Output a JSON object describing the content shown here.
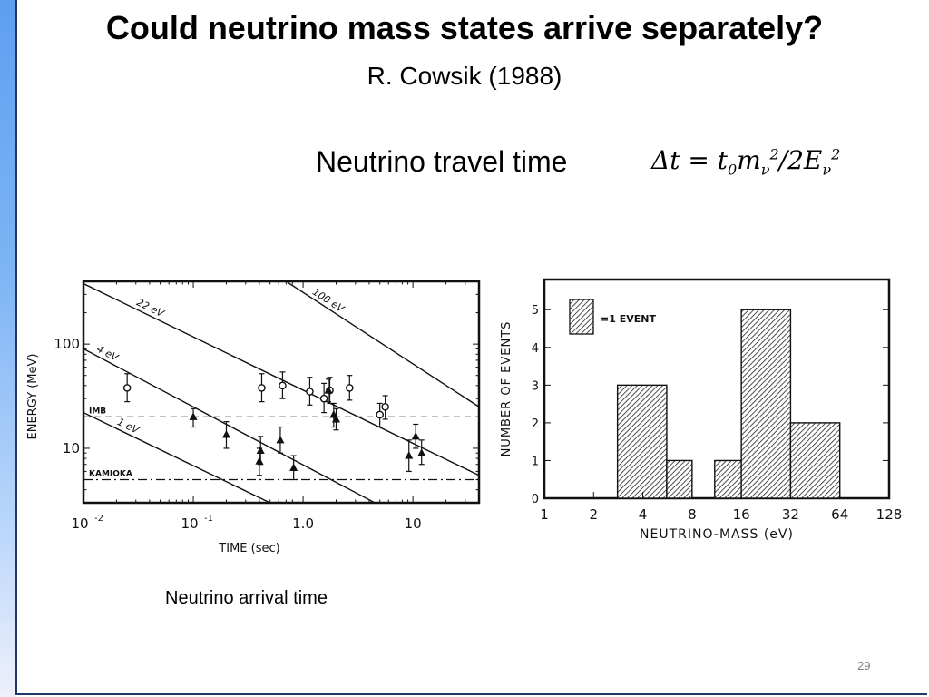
{
  "slide": {
    "title": "Could neutrino mass states arrive separately?",
    "subtitle": "R. Cowsik (1988)",
    "travel_label": "Neutrino travel time",
    "formula": {
      "lhs": "Δt = t",
      "t_sub": "0",
      "m": "m",
      "m_sub": "ν",
      "m_sup": "2",
      "div": "/2E",
      "e_sub": "ν",
      "e_sup": "2"
    },
    "caption": "Neutrino arrival time",
    "page_number": "29"
  },
  "chart_data": [
    {
      "type": "scatter",
      "xlabel": "TIME (sec)",
      "ylabel": "ENERGY (MeV)",
      "xscale": "log",
      "yscale": "log",
      "xlim": [
        0.01,
        40
      ],
      "ylim": [
        3,
        400
      ],
      "x_tick_labels": [
        {
          "value": 0.01,
          "base": "10",
          "exp": "-2"
        },
        {
          "value": 0.1,
          "base": "10",
          "exp": "-1"
        },
        {
          "value": 1,
          "base": "1.0",
          "exp": ""
        },
        {
          "value": 10,
          "base": "10",
          "exp": ""
        }
      ],
      "y_tick_labels": [
        {
          "value": 10,
          "label": "10"
        },
        {
          "value": 100,
          "label": "100"
        }
      ],
      "mass_lines": [
        {
          "label": "100 eV",
          "pts": [
            [
              0.7,
              400
            ],
            [
              40,
              25
            ]
          ]
        },
        {
          "label": "22 eV",
          "pts": [
            [
              0.01,
              380
            ],
            [
              40,
              5.5
            ]
          ]
        },
        {
          "label": "4 eV",
          "pts": [
            [
              0.01,
              90
            ],
            [
              4.5,
              3
            ]
          ]
        },
        {
          "label": "1 eV",
          "pts": [
            [
              0.01,
              22
            ],
            [
              0.5,
              3
            ]
          ]
        }
      ],
      "thresholds": [
        {
          "label": "IMB",
          "energy": 20,
          "style": "dashed"
        },
        {
          "label": "KAMIOKA",
          "energy": 5,
          "style": "dashdot"
        }
      ],
      "series": [
        {
          "name": "IMB",
          "marker": "open-circle",
          "points": [
            {
              "x": 0.025,
              "y": 38,
              "ylo": 28,
              "yhi": 52
            },
            {
              "x": 0.42,
              "y": 38,
              "ylo": 28,
              "yhi": 52
            },
            {
              "x": 0.65,
              "y": 40,
              "ylo": 30,
              "yhi": 54
            },
            {
              "x": 1.15,
              "y": 35,
              "ylo": 26,
              "yhi": 48
            },
            {
              "x": 1.55,
              "y": 30,
              "ylo": 22,
              "yhi": 42
            },
            {
              "x": 1.75,
              "y": 36,
              "ylo": 27,
              "yhi": 48
            },
            {
              "x": 2.65,
              "y": 38,
              "ylo": 29,
              "yhi": 50
            },
            {
              "x": 5.0,
              "y": 21,
              "ylo": 16,
              "yhi": 27
            },
            {
              "x": 5.6,
              "y": 25,
              "ylo": 19,
              "yhi": 32
            }
          ]
        },
        {
          "name": "KAMIOKA",
          "marker": "filled-triangle",
          "points": [
            {
              "x": 0.1,
              "y": 20,
              "ylo": 16,
              "yhi": 24
            },
            {
              "x": 0.2,
              "y": 13.5,
              "ylo": 10,
              "yhi": 18
            },
            {
              "x": 0.4,
              "y": 7.5,
              "ylo": 5.5,
              "yhi": 10
            },
            {
              "x": 0.41,
              "y": 9.5,
              "ylo": 7,
              "yhi": 13
            },
            {
              "x": 0.62,
              "y": 12,
              "ylo": 9,
              "yhi": 16
            },
            {
              "x": 0.82,
              "y": 6.5,
              "ylo": 5,
              "yhi": 8.5
            },
            {
              "x": 1.7,
              "y": 36,
              "ylo": 28,
              "yhi": 46
            },
            {
              "x": 1.9,
              "y": 21,
              "ylo": 16,
              "yhi": 27
            },
            {
              "x": 2.0,
              "y": 19,
              "ylo": 15,
              "yhi": 24
            },
            {
              "x": 9.2,
              "y": 8.5,
              "ylo": 6,
              "yhi": 12
            },
            {
              "x": 10.6,
              "y": 13,
              "ylo": 10,
              "yhi": 17
            },
            {
              "x": 12.0,
              "y": 9,
              "ylo": 7,
              "yhi": 12
            }
          ]
        }
      ]
    },
    {
      "type": "bar",
      "xlabel": "NEUTRINO-MASS (eV)",
      "ylabel": "NUMBER OF EVENTS",
      "xscale": "log2",
      "x_ticks": [
        1,
        2,
        4,
        8,
        16,
        32,
        64,
        128
      ],
      "x_tick_labels": [
        "1",
        "2",
        "4",
        "8",
        "16",
        "32",
        "64",
        "128"
      ],
      "y_ticks": [
        0,
        1,
        2,
        3,
        4,
        5
      ],
      "y_tick_labels": [
        "0",
        "1",
        "2",
        "3",
        "4",
        "5"
      ],
      "ylim": [
        0,
        5.8
      ],
      "legend": "=1 EVENT",
      "bins": [
        {
          "from": 2.8,
          "to": 5.6,
          "count": 3
        },
        {
          "from": 5.6,
          "to": 8,
          "count": 1
        },
        {
          "from": 11,
          "to": 16,
          "count": 1
        },
        {
          "from": 16,
          "to": 32,
          "count": 5
        },
        {
          "from": 32,
          "to": 64,
          "count": 2
        }
      ]
    }
  ]
}
